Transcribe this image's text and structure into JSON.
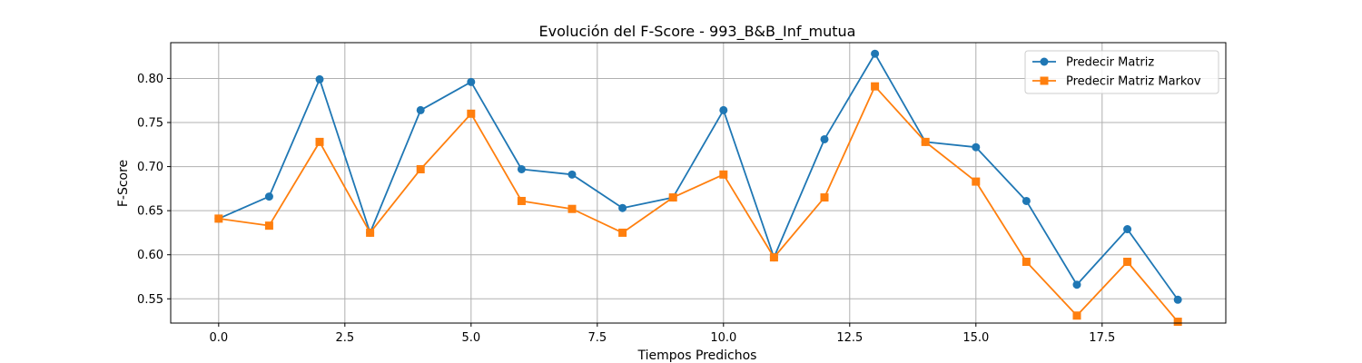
{
  "chart_data": {
    "type": "line",
    "title": "Evolución del F-Score - 993_B&B_Inf_mutua",
    "xlabel": "Tiempos Predichos",
    "ylabel": "F-Score",
    "xlim": [
      -0.95,
      19.95
    ],
    "ylim": [
      0.5225,
      0.8406
    ],
    "xticks": [
      0.0,
      2.5,
      5.0,
      7.5,
      10.0,
      12.5,
      15.0,
      17.5
    ],
    "xtick_labels": [
      "0.0",
      "2.5",
      "5.0",
      "7.5",
      "10.0",
      "12.5",
      "15.0",
      "17.5"
    ],
    "yticks": [
      0.55,
      0.6,
      0.65,
      0.7,
      0.75,
      0.8
    ],
    "ytick_labels": [
      "0.55",
      "0.60",
      "0.65",
      "0.70",
      "0.75",
      "0.80"
    ],
    "grid": true,
    "legend_position": "top-right",
    "x": [
      0,
      1,
      2,
      3,
      4,
      5,
      6,
      7,
      8,
      9,
      10,
      11,
      12,
      13,
      14,
      15,
      16,
      17,
      18,
      19
    ],
    "series": [
      {
        "name": "Predecir Matriz",
        "color": "#1f77b4",
        "marker": "circle",
        "values": [
          0.641,
          0.666,
          0.799,
          0.625,
          0.764,
          0.796,
          0.697,
          0.691,
          0.653,
          0.665,
          0.764,
          0.597,
          0.731,
          0.828,
          0.728,
          0.722,
          0.661,
          0.566,
          0.629,
          0.549
        ]
      },
      {
        "name": "Predecir Matriz Markov",
        "color": "#ff7f0e",
        "marker": "square",
        "values": [
          0.641,
          0.633,
          0.728,
          0.625,
          0.697,
          0.76,
          0.661,
          0.652,
          0.625,
          0.665,
          0.691,
          0.597,
          0.665,
          0.791,
          0.728,
          0.683,
          0.592,
          0.531,
          0.592,
          0.524
        ]
      }
    ]
  }
}
